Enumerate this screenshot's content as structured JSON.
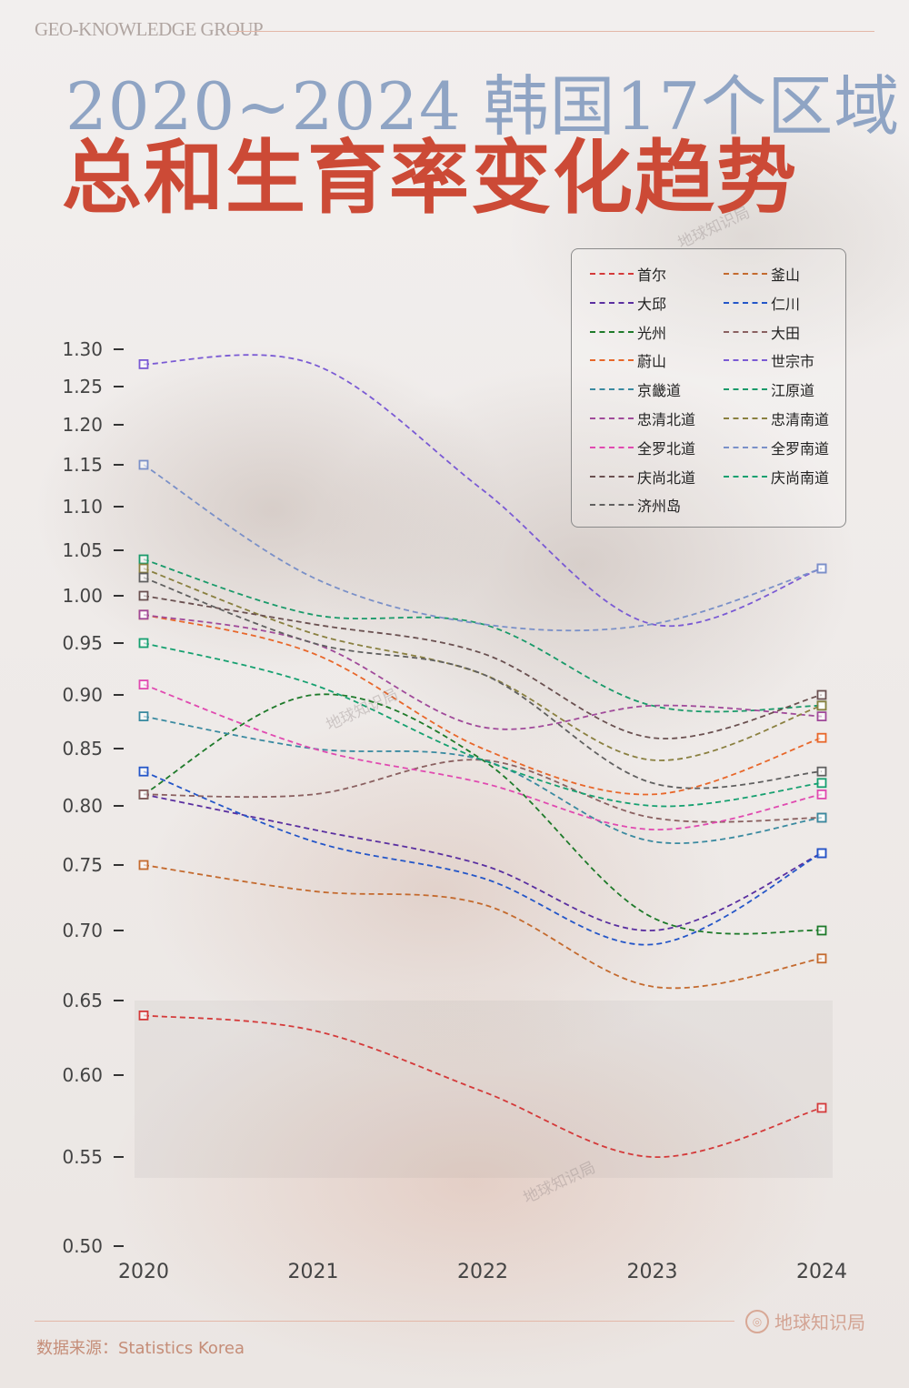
{
  "header": {
    "brand": "GEO-KNOWLEDGE GROUP",
    "title_line1": "2020~2024 韩国17个区域",
    "title_line2": "总和生育率变化趋势"
  },
  "watermark": "地球知识局",
  "footer": {
    "source": "数据来源：Statistics Korea",
    "logo_text": "地球知识局"
  },
  "chart_data": {
    "type": "line",
    "title": "2020~2024 韩国17个区域 总和生育率变化趋势",
    "x": [
      "2020",
      "2021",
      "2022",
      "2023",
      "2024"
    ],
    "y_ticks": [
      "1.30",
      "1.25",
      "1.20",
      "1.15",
      "1.10",
      "1.05",
      "1.00",
      "0.95",
      "0.90",
      "0.85",
      "0.80",
      "0.75",
      "0.70",
      "0.65",
      "0.60",
      "0.55",
      "0.50"
    ],
    "ylim": [
      0.5,
      1.3
    ],
    "grid": false,
    "legend_position": "top-right",
    "line_style": "dashed, smoothed, square markers at 2020 and 2024",
    "series": [
      {
        "name": "首尔",
        "color": "#d43a3a",
        "values": [
          0.64,
          0.63,
          0.59,
          0.55,
          0.58
        ]
      },
      {
        "name": "釜山",
        "color": "#c46a2e",
        "values": [
          0.75,
          0.73,
          0.72,
          0.66,
          0.68
        ]
      },
      {
        "name": "大邱",
        "color": "#5a2fa0",
        "values": [
          0.81,
          0.78,
          0.75,
          0.7,
          0.76
        ]
      },
      {
        "name": "仁川",
        "color": "#2456c8",
        "values": [
          0.83,
          0.77,
          0.74,
          0.69,
          0.76
        ]
      },
      {
        "name": "光州",
        "color": "#1e7a2a",
        "values": [
          0.81,
          0.9,
          0.84,
          0.71,
          0.7
        ]
      },
      {
        "name": "大田",
        "color": "#8a6060",
        "values": [
          0.81,
          0.81,
          0.84,
          0.79,
          0.79
        ]
      },
      {
        "name": "蔚山",
        "color": "#e8672a",
        "values": [
          0.98,
          0.94,
          0.85,
          0.81,
          0.86
        ]
      },
      {
        "name": "世宗市",
        "color": "#7a5ad4",
        "values": [
          1.28,
          1.28,
          1.12,
          0.97,
          1.03
        ]
      },
      {
        "name": "京畿道",
        "color": "#3a8aa0",
        "values": [
          0.88,
          0.85,
          0.84,
          0.77,
          0.79
        ]
      },
      {
        "name": "江原道",
        "color": "#1a9a6a",
        "values": [
          1.04,
          0.98,
          0.97,
          0.89,
          0.89
        ]
      },
      {
        "name": "忠清北道",
        "color": "#a04a9a",
        "values": [
          0.98,
          0.95,
          0.87,
          0.89,
          0.88
        ]
      },
      {
        "name": "忠清南道",
        "color": "#8a8040",
        "values": [
          1.03,
          0.96,
          0.92,
          0.84,
          0.89
        ]
      },
      {
        "name": "全罗北道",
        "color": "#e04ab0",
        "values": [
          0.91,
          0.85,
          0.82,
          0.78,
          0.81
        ]
      },
      {
        "name": "全罗南道",
        "color": "#7a90c8",
        "values": [
          1.15,
          1.02,
          0.97,
          0.97,
          1.03
        ]
      },
      {
        "name": "庆尚北道",
        "color": "#6a5050",
        "values": [
          1.0,
          0.97,
          0.94,
          0.86,
          0.9
        ]
      },
      {
        "name": "庆尚南道",
        "color": "#16a070",
        "values": [
          0.95,
          0.91,
          0.84,
          0.8,
          0.82
        ]
      },
      {
        "name": "济州岛",
        "color": "#606060",
        "values": [
          1.02,
          0.95,
          0.92,
          0.82,
          0.83
        ]
      }
    ]
  }
}
